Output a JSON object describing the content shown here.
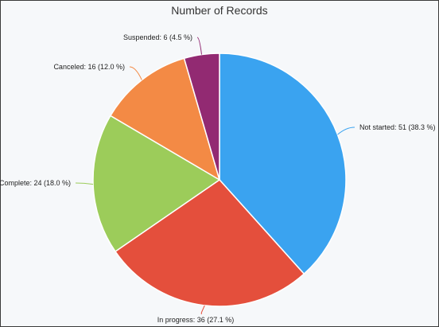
{
  "chart_data": {
    "type": "pie",
    "title": "Number of Records",
    "slices": [
      {
        "label": "Not started",
        "value": 51,
        "percent": "38.3 %",
        "color": "#3aa3f0",
        "display": "Not started: 51 (38.3 %)"
      },
      {
        "label": "In progress",
        "value": 36,
        "percent": "27.1 %",
        "color": "#e44f3c",
        "display": "In progress: 36 (27.1 %)"
      },
      {
        "label": "Complete",
        "value": 24,
        "percent": "18.0 %",
        "color": "#9ccc5a",
        "display": "Complete: 24 (18.0 %)"
      },
      {
        "label": "Canceled",
        "value": 16,
        "percent": "12.0 %",
        "color": "#f38a45",
        "display": "Canceled: 16 (12.0 %)"
      },
      {
        "label": "Suspended",
        "value": 6,
        "percent": "4.5 %",
        "color": "#922a72",
        "display": "Suspended: 6 (4.5 %)"
      }
    ],
    "start_angle": "12 o'clock",
    "direction": "clockwise",
    "legend": "none"
  }
}
